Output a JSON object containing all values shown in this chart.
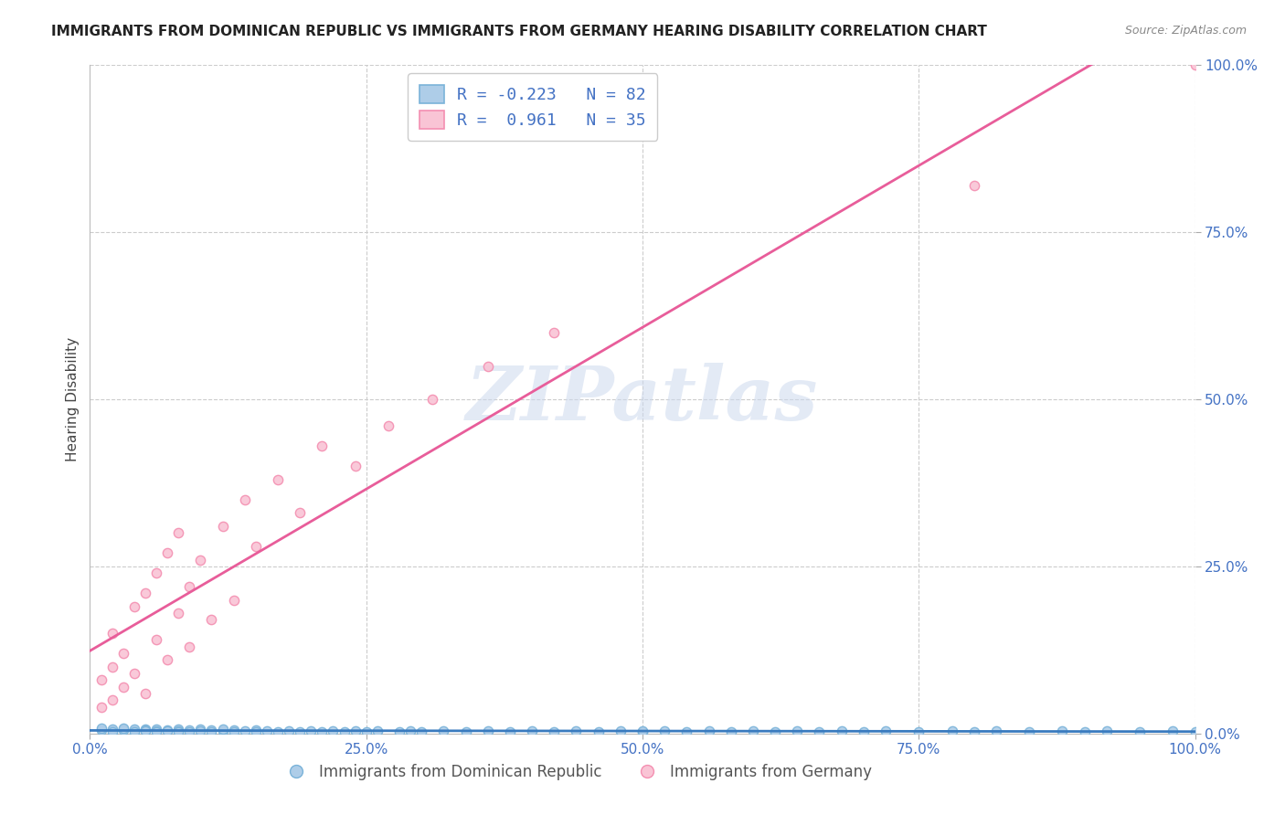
{
  "title": "IMMIGRANTS FROM DOMINICAN REPUBLIC VS IMMIGRANTS FROM GERMANY HEARING DISABILITY CORRELATION CHART",
  "source": "Source: ZipAtlas.com",
  "xlabel_blue": "Immigrants from Dominican Republic",
  "xlabel_pink": "Immigrants from Germany",
  "ylabel": "Hearing Disability",
  "blue_R": -0.223,
  "blue_N": 82,
  "pink_R": 0.961,
  "pink_N": 35,
  "xlim": [
    0.0,
    1.0
  ],
  "ylim": [
    0.0,
    1.0
  ],
  "xticks": [
    0.0,
    0.25,
    0.5,
    0.75,
    1.0
  ],
  "yticks": [
    0.0,
    0.25,
    0.5,
    0.75,
    1.0
  ],
  "xtick_labels": [
    "0.0%",
    "25.0%",
    "50.0%",
    "75.0%",
    "100.0%"
  ],
  "ytick_labels": [
    "0.0%",
    "25.0%",
    "50.0%",
    "75.0%",
    "100.0%"
  ],
  "blue_color": "#7ab3d9",
  "blue_face": "#aecde8",
  "pink_color": "#f48fb1",
  "pink_face": "#f9c4d5",
  "blue_line_color": "#3a7bbf",
  "pink_line_color": "#e85d9a",
  "watermark": "ZIPatlas",
  "background_color": "#ffffff",
  "grid_color": "#cccccc",
  "title_color": "#222222",
  "axis_label_color": "#4472c4",
  "blue_scatter_x": [
    0.01,
    0.01,
    0.02,
    0.02,
    0.02,
    0.03,
    0.03,
    0.03,
    0.04,
    0.04,
    0.04,
    0.05,
    0.05,
    0.05,
    0.06,
    0.06,
    0.06,
    0.07,
    0.07,
    0.08,
    0.08,
    0.08,
    0.09,
    0.09,
    0.1,
    0.1,
    0.11,
    0.11,
    0.12,
    0.12,
    0.13,
    0.13,
    0.14,
    0.15,
    0.15,
    0.16,
    0.17,
    0.18,
    0.19,
    0.2,
    0.21,
    0.22,
    0.23,
    0.24,
    0.25,
    0.26,
    0.28,
    0.29,
    0.3,
    0.32,
    0.34,
    0.36,
    0.38,
    0.4,
    0.42,
    0.44,
    0.46,
    0.48,
    0.5,
    0.52,
    0.54,
    0.56,
    0.58,
    0.6,
    0.62,
    0.64,
    0.66,
    0.68,
    0.7,
    0.72,
    0.75,
    0.78,
    0.8,
    0.82,
    0.85,
    0.88,
    0.9,
    0.92,
    0.95,
    0.98,
    1.0,
    0.5
  ],
  "blue_scatter_y": [
    0.005,
    0.008,
    0.004,
    0.007,
    0.003,
    0.006,
    0.005,
    0.008,
    0.004,
    0.006,
    0.003,
    0.007,
    0.005,
    0.004,
    0.006,
    0.004,
    0.003,
    0.005,
    0.004,
    0.006,
    0.004,
    0.003,
    0.005,
    0.003,
    0.006,
    0.004,
    0.005,
    0.003,
    0.004,
    0.006,
    0.005,
    0.003,
    0.004,
    0.005,
    0.003,
    0.004,
    0.003,
    0.004,
    0.003,
    0.004,
    0.003,
    0.004,
    0.003,
    0.004,
    0.003,
    0.004,
    0.003,
    0.004,
    0.003,
    0.004,
    0.003,
    0.004,
    0.003,
    0.004,
    0.003,
    0.004,
    0.003,
    0.004,
    0.003,
    0.004,
    0.003,
    0.004,
    0.003,
    0.004,
    0.003,
    0.004,
    0.003,
    0.004,
    0.003,
    0.004,
    0.003,
    0.004,
    0.003,
    0.004,
    0.003,
    0.004,
    0.003,
    0.004,
    0.003,
    0.004,
    0.003,
    0.004
  ],
  "pink_scatter_x": [
    0.01,
    0.01,
    0.02,
    0.02,
    0.02,
    0.03,
    0.03,
    0.04,
    0.04,
    0.05,
    0.05,
    0.06,
    0.06,
    0.07,
    0.07,
    0.08,
    0.08,
    0.09,
    0.09,
    0.1,
    0.11,
    0.12,
    0.13,
    0.14,
    0.15,
    0.17,
    0.19,
    0.21,
    0.24,
    0.27,
    0.31,
    0.36,
    0.42,
    0.8,
    1.0
  ],
  "pink_scatter_y": [
    0.04,
    0.08,
    0.05,
    0.1,
    0.15,
    0.07,
    0.12,
    0.09,
    0.19,
    0.06,
    0.21,
    0.14,
    0.24,
    0.11,
    0.27,
    0.18,
    0.3,
    0.13,
    0.22,
    0.26,
    0.17,
    0.31,
    0.2,
    0.35,
    0.28,
    0.38,
    0.33,
    0.43,
    0.4,
    0.46,
    0.5,
    0.55,
    0.6,
    0.82,
    1.0
  ]
}
